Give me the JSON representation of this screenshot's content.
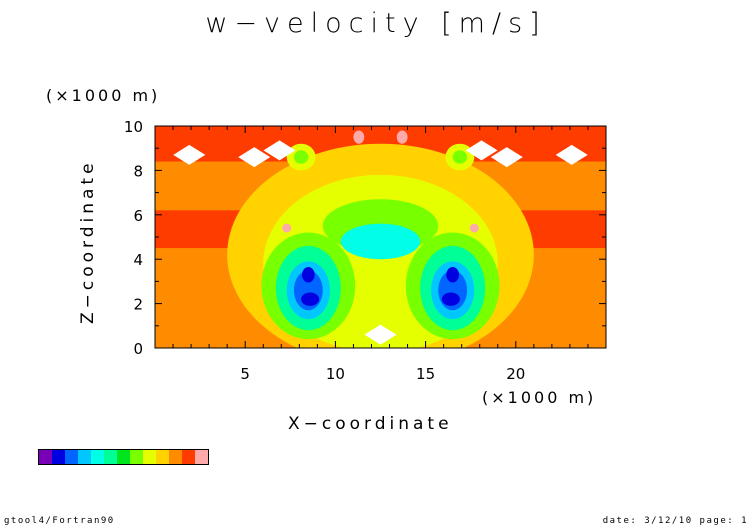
{
  "title": "w−velocity [m/s]",
  "footer": {
    "left": "gtool4/Fortran90",
    "right": "date: 3/12/10 page: 1"
  },
  "chart_data": {
    "type": "heatmap",
    "title": "w−velocity [m/s]",
    "xlabel": "X−coordinate",
    "ylabel": "Z−coordinate",
    "x_multiplier": "(×1000 m)",
    "y_multiplier": "(×1000 m)",
    "xlim": [
      0,
      25
    ],
    "ylim": [
      0,
      10
    ],
    "x_ticks": [
      5,
      10,
      15,
      20
    ],
    "y_ticks": [
      0,
      2,
      4,
      6,
      8,
      10
    ],
    "colors": [
      "#7a00b8",
      "#0000e0",
      "#0066ff",
      "#00c8ff",
      "#00ffe6",
      "#00ff96",
      "#00e61e",
      "#78ff00",
      "#e6ff00",
      "#ffd200",
      "#ff8c00",
      "#ff3c00",
      "#ffaaaa"
    ],
    "level_regions": [
      {
        "level": 10,
        "shape": "background"
      },
      {
        "level": 11,
        "shape": "band",
        "y": [
          4.5,
          6.2
        ],
        "x": [
          0.0,
          7.5
        ]
      },
      {
        "level": 11,
        "shape": "band",
        "y": [
          4.5,
          6.2
        ],
        "x": [
          17.5,
          25.0
        ]
      },
      {
        "level": 11,
        "shape": "band",
        "y": [
          8.4,
          10.0
        ],
        "x": [
          0.0,
          25.0
        ]
      },
      {
        "level": 11,
        "shape": "band",
        "y": [
          0.0,
          0.8
        ],
        "x": [
          10.5,
          13.0
        ]
      },
      {
        "level": 9,
        "shape": "ellipse",
        "cx": 12.5,
        "cy": 4.2,
        "rx": 8.5,
        "ry": 5.0
      },
      {
        "level": 8,
        "shape": "ellipse",
        "cx": 12.5,
        "cy": 3.8,
        "rx": 6.5,
        "ry": 4.0
      },
      {
        "level": 7,
        "shape": "ellipse",
        "cx": 8.5,
        "cy": 2.8,
        "rx": 2.6,
        "ry": 2.4
      },
      {
        "level": 7,
        "shape": "ellipse",
        "cx": 16.5,
        "cy": 2.8,
        "rx": 2.6,
        "ry": 2.4
      },
      {
        "level": 7,
        "shape": "ellipse",
        "cx": 12.5,
        "cy": 5.5,
        "rx": 3.2,
        "ry": 1.2
      },
      {
        "level": 5,
        "shape": "ellipse",
        "cx": 8.5,
        "cy": 2.7,
        "rx": 1.8,
        "ry": 1.9
      },
      {
        "level": 5,
        "shape": "ellipse",
        "cx": 16.5,
        "cy": 2.7,
        "rx": 1.8,
        "ry": 1.9
      },
      {
        "level": 4,
        "shape": "ellipse",
        "cx": 12.5,
        "cy": 4.8,
        "rx": 2.2,
        "ry": 0.8
      },
      {
        "level": 3,
        "shape": "ellipse",
        "cx": 8.5,
        "cy": 2.6,
        "rx": 1.2,
        "ry": 1.3
      },
      {
        "level": 3,
        "shape": "ellipse",
        "cx": 16.5,
        "cy": 2.6,
        "rx": 1.2,
        "ry": 1.3
      },
      {
        "level": 2,
        "shape": "ellipse",
        "cx": 8.5,
        "cy": 2.6,
        "rx": 0.8,
        "ry": 0.9
      },
      {
        "level": 2,
        "shape": "ellipse",
        "cx": 16.5,
        "cy": 2.6,
        "rx": 0.8,
        "ry": 0.9
      },
      {
        "level": 1,
        "shape": "ellipse",
        "cx": 8.6,
        "cy": 2.2,
        "rx": 0.5,
        "ry": 0.3
      },
      {
        "level": 1,
        "shape": "ellipse",
        "cx": 16.4,
        "cy": 2.2,
        "rx": 0.5,
        "ry": 0.3
      },
      {
        "level": 1,
        "shape": "ellipse",
        "cx": 8.5,
        "cy": 3.3,
        "rx": 0.35,
        "ry": 0.35
      },
      {
        "level": 1,
        "shape": "ellipse",
        "cx": 16.5,
        "cy": 3.3,
        "rx": 0.35,
        "ry": 0.35
      },
      {
        "level": 8,
        "shape": "ellipse",
        "cx": 8.1,
        "cy": 8.6,
        "rx": 0.8,
        "ry": 0.6
      },
      {
        "level": 8,
        "shape": "ellipse",
        "cx": 16.9,
        "cy": 8.6,
        "rx": 0.8,
        "ry": 0.6
      },
      {
        "level": 7,
        "shape": "ellipse",
        "cx": 8.1,
        "cy": 8.6,
        "rx": 0.4,
        "ry": 0.3
      },
      {
        "level": 7,
        "shape": "ellipse",
        "cx": 16.9,
        "cy": 8.6,
        "rx": 0.4,
        "ry": 0.3
      },
      {
        "level": 12,
        "shape": "ellipse",
        "cx": 11.3,
        "cy": 9.5,
        "rx": 0.3,
        "ry": 0.3
      },
      {
        "level": 12,
        "shape": "ellipse",
        "cx": 13.7,
        "cy": 9.5,
        "rx": 0.3,
        "ry": 0.3
      },
      {
        "level": 12,
        "shape": "ellipse",
        "cx": 7.3,
        "cy": 5.4,
        "rx": 0.25,
        "ry": 0.2
      },
      {
        "level": 12,
        "shape": "ellipse",
        "cx": 17.7,
        "cy": 5.4,
        "rx": 0.25,
        "ry": 0.2
      }
    ],
    "white_patches": [
      {
        "cx": 1.9,
        "cy": 8.7
      },
      {
        "cx": 5.5,
        "cy": 8.6
      },
      {
        "cx": 6.9,
        "cy": 8.9
      },
      {
        "cx": 18.1,
        "cy": 8.9
      },
      {
        "cx": 19.5,
        "cy": 8.6
      },
      {
        "cx": 23.1,
        "cy": 8.7
      },
      {
        "cx": 12.5,
        "cy": 0.6
      }
    ],
    "legend": "colorbar-bottom-left",
    "grid": false
  }
}
